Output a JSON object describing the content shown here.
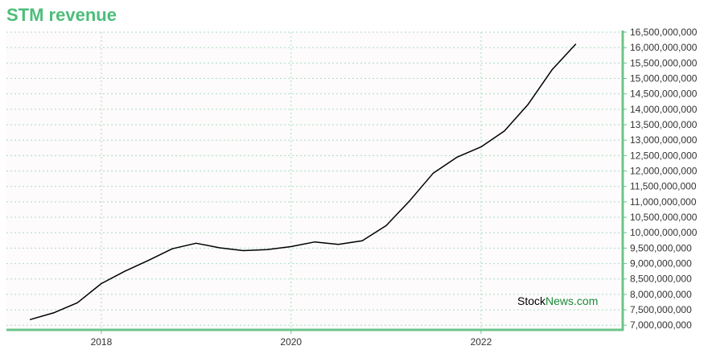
{
  "title": "STM revenue",
  "watermark": {
    "part1": "Stock",
    "part2": "News.com"
  },
  "colors": {
    "title": "#4dbd7a",
    "axis": "#6cc48a",
    "grid": "#a8dcc0",
    "plot_bg": "#fdfbfb",
    "line": "#000000",
    "watermark_brand": "#1a8a3a"
  },
  "chart_data": {
    "type": "line",
    "title": "STM revenue",
    "xlabel": "",
    "ylabel": "",
    "grid": true,
    "x_tick_labels": [
      "2018",
      "2020",
      "2022"
    ],
    "y_tick_values": [
      7000000000,
      7500000000,
      8000000000,
      8500000000,
      9000000000,
      9500000000,
      10000000000,
      10500000000,
      11000000000,
      11500000000,
      12000000000,
      12500000000,
      13000000000,
      13500000000,
      14000000000,
      14500000000,
      15000000000,
      15500000000,
      16000000000,
      16500000000
    ],
    "y_tick_labels": [
      "7,000,000,000",
      "7,500,000,000",
      "8,000,000,000",
      "8,500,000,000",
      "9,000,000,000",
      "9,500,000,000",
      "10,000,000,000",
      "10,500,000,000",
      "11,000,000,000",
      "11,500,000,000",
      "12,000,000,000",
      "12,500,000,000",
      "13,000,000,000",
      "13,500,000,000",
      "14,000,000,000",
      "14,500,000,000",
      "15,000,000,000",
      "15,500,000,000",
      "16,000,000,000",
      "16,500,000,000"
    ],
    "xlim": [
      "2017-01-01",
      "2023-06-30"
    ],
    "ylim": [
      6850000000,
      16500000000
    ],
    "series": [
      {
        "x": [
          "2017-04-01",
          "2017-07-01",
          "2017-10-01",
          "2018-01-01",
          "2018-04-01",
          "2018-07-01",
          "2018-10-01",
          "2019-01-01",
          "2019-04-01",
          "2019-07-01",
          "2019-10-01",
          "2020-01-01",
          "2020-04-01",
          "2020-07-01",
          "2020-10-01",
          "2021-01-01",
          "2021-04-01",
          "2021-07-01",
          "2021-10-01",
          "2022-01-01",
          "2022-04-01",
          "2022-07-01",
          "2022-10-01",
          "2023-01-01"
        ],
        "values": [
          7180000000,
          7400000000,
          7730000000,
          8350000000,
          8750000000,
          9100000000,
          9480000000,
          9660000000,
          9510000000,
          9420000000,
          9450000000,
          9550000000,
          9700000000,
          9620000000,
          9740000000,
          10230000000,
          11030000000,
          11930000000,
          12450000000,
          12780000000,
          13300000000,
          14160000000,
          15280000000,
          16120000000
        ]
      }
    ]
  }
}
